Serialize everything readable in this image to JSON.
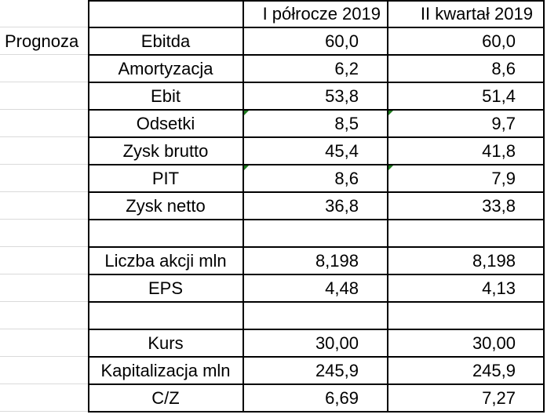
{
  "header": {
    "col_c": "I półrocze 2019",
    "col_d": "II kwartał 2019"
  },
  "section_label": "Prognoza",
  "rows": [
    {
      "label": "Ebitda",
      "c": "60,0",
      "d": "60,0"
    },
    {
      "label": "Amortyzacja",
      "c": "6,2",
      "d": "8,6"
    },
    {
      "label": "Ebit",
      "c": "53,8",
      "d": "51,4"
    },
    {
      "label": "Odsetki",
      "c": "8,5",
      "d": "9,7"
    },
    {
      "label": "Zysk brutto",
      "c": "45,4",
      "d": "41,8"
    },
    {
      "label": "PIT",
      "c": "8,6",
      "d": "7,9"
    },
    {
      "label": "Zysk netto",
      "c": "36,8",
      "d": "33,8"
    },
    {
      "label": "",
      "c": "",
      "d": ""
    },
    {
      "label": "Liczba akcji mln",
      "c": "8,198",
      "d": "8,198"
    },
    {
      "label": "EPS",
      "c": "4,48",
      "d": "4,13"
    },
    {
      "label": "",
      "c": "",
      "d": ""
    },
    {
      "label": "Kurs",
      "c": "30,00",
      "d": "30,00"
    },
    {
      "label": "Kapitalizacja mln",
      "c": "245,9",
      "d": "245,9"
    },
    {
      "label": "C/Z",
      "c": "6,69",
      "d": "7,27"
    }
  ],
  "colors": {
    "gridline": "#dadada",
    "border": "#000000",
    "comment_marker": "#1e7b1e"
  }
}
